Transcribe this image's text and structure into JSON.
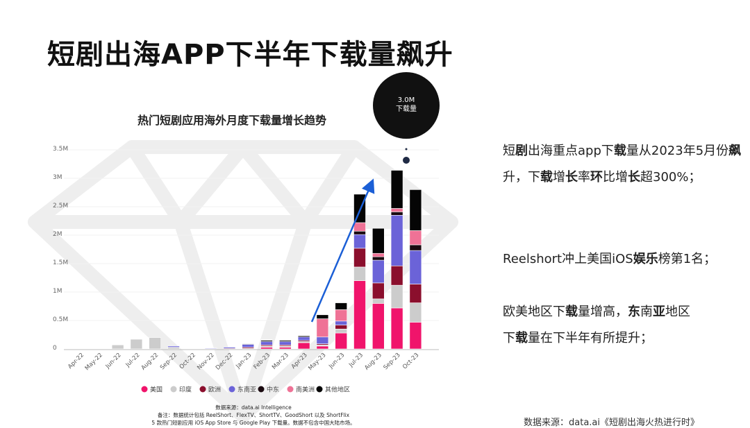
{
  "header": {
    "title": "短剧出海APP下半年下载量飙升"
  },
  "chart_data": {
    "type": "bar",
    "stacked": true,
    "title": "热门短剧应用海外月度下载量增长趋势",
    "ylabel": "",
    "xlabel": "",
    "ylim": [
      0,
      3500000
    ],
    "yticks": [
      "0",
      "0.5M",
      "1M",
      "1.5M",
      "2M",
      "2.5M",
      "3M",
      "3.5M"
    ],
    "categories": [
      "Apr-22",
      "May-22",
      "Jun-22",
      "Jul-22",
      "Aug-22",
      "Sep-22",
      "Oct-22",
      "Nov-22",
      "Dec-22",
      "Jan-23",
      "Feb-23",
      "Mar-23",
      "Apr-23",
      "May-23",
      "Jun-23",
      "Jul-23",
      "Aug-23",
      "Sep-23",
      "Oct-23"
    ],
    "series": [
      {
        "name": "美国",
        "color": "#f0146b",
        "values": [
          0,
          0,
          0,
          0,
          0,
          0,
          0,
          0,
          0,
          0,
          30000,
          30000,
          110000,
          50000,
          280000,
          1200000,
          800000,
          720000,
          470000
        ]
      },
      {
        "name": "印度",
        "color": "#cccccc",
        "values": [
          0,
          0,
          70000,
          170000,
          200000,
          30000,
          0,
          5000,
          0,
          10000,
          20000,
          20000,
          20000,
          20000,
          70000,
          240000,
          80000,
          400000,
          340000
        ]
      },
      {
        "name": "欧洲",
        "color": "#8b0f2d",
        "values": [
          0,
          0,
          0,
          0,
          0,
          0,
          0,
          0,
          10000,
          20000,
          20000,
          20000,
          20000,
          20000,
          70000,
          330000,
          280000,
          340000,
          330000
        ]
      },
      {
        "name": "东南亚",
        "color": "#6b63d8",
        "values": [
          0,
          0,
          0,
          0,
          0,
          20000,
          0,
          10000,
          20000,
          50000,
          60000,
          60000,
          60000,
          120000,
          70000,
          240000,
          400000,
          890000,
          590000
        ]
      },
      {
        "name": "中东",
        "color": "#1a0a10",
        "values": [
          0,
          0,
          0,
          0,
          0,
          0,
          0,
          0,
          0,
          0,
          0,
          0,
          0,
          0,
          0,
          60000,
          60000,
          60000,
          100000
        ]
      },
      {
        "name": "南美洲",
        "color": "#ef7296",
        "values": [
          0,
          0,
          0,
          0,
          0,
          0,
          0,
          0,
          0,
          0,
          0,
          0,
          0,
          320000,
          200000,
          150000,
          60000,
          60000,
          250000
        ]
      },
      {
        "name": "其他地区",
        "color": "#050505",
        "values": [
          0,
          0,
          0,
          0,
          0,
          0,
          0,
          0,
          0,
          10000,
          20000,
          20000,
          20000,
          70000,
          120000,
          500000,
          440000,
          670000,
          720000
        ]
      }
    ],
    "annotation": {
      "value_label": "3.0M",
      "text": "下载量"
    },
    "source": "数据来源：data.ai Intelligence",
    "note_line1": "备注：数据统计包括 ReelShort、FlexTV、ShortTV、GoodShort 以及 ShortFlix",
    "note_line2": "5 款热门短剧应用 iOS App Store 与 Google Play 下载量。数据不包含中国大陆市场。"
  },
  "side": {
    "p1_a": "短",
    "p1_b": "剧",
    "p1_c": "出海重点app下",
    "p1_d": "载",
    "p1_e": "量从2023年5月份",
    "p1_f": "飙",
    "p1_g": "升，下",
    "p1_h": "载",
    "p1_i": "增",
    "p1_j": "长",
    "p1_k": "率",
    "p1_l": "环",
    "p1_m": "比增",
    "p1_n": "长",
    "p1_o": "超300%；",
    "p2_a": "Reelshort冲上美国iOS",
    "p2_b": "娱乐",
    "p2_c": "榜第1名；",
    "p3_a": "欧美地区下",
    "p3_b": "载",
    "p3_c": "量增高，",
    "p3_d": "东",
    "p3_e": "南",
    "p3_f": "亚",
    "p3_g": "地区",
    "p3_h": "下",
    "p3_i": "载",
    "p3_j": "量在下半年有所提升；"
  },
  "footer": {
    "source": "数据来源：data.ai《短剧出海火热进行时》"
  }
}
